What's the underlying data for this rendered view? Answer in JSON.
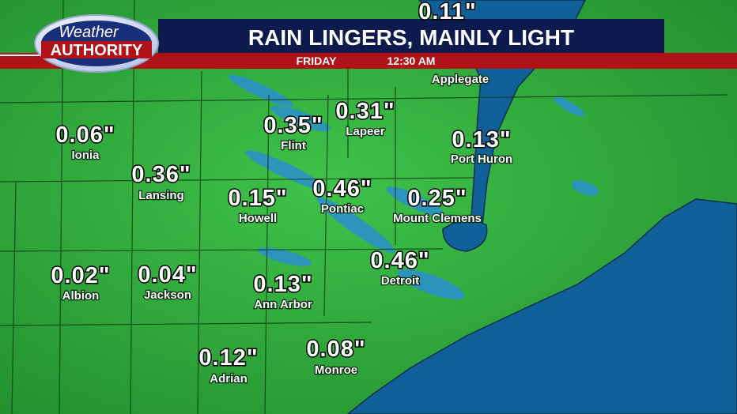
{
  "header": {
    "logo_top": "Weather",
    "logo_bottom": "AUTHORITY",
    "title": "RAIN LINGERS, MAINLY LIGHT",
    "day": "FRIDAY",
    "time": "12:30 AM"
  },
  "locations": [
    {
      "name": "Applegate",
      "amount": "0.11\""
    },
    {
      "name": "Ionia",
      "amount": "0.06\""
    },
    {
      "name": "Lansing",
      "amount": "0.36\""
    },
    {
      "name": "Flint",
      "amount": "0.35\""
    },
    {
      "name": "Lapeer",
      "amount": "0.31\""
    },
    {
      "name": "Port Huron",
      "amount": "0.13\""
    },
    {
      "name": "Howell",
      "amount": "0.15\""
    },
    {
      "name": "Pontiac",
      "amount": "0.46\""
    },
    {
      "name": "Mount Clemens",
      "amount": "0.25\""
    },
    {
      "name": "Albion",
      "amount": "0.02\""
    },
    {
      "name": "Jackson",
      "amount": "0.04\""
    },
    {
      "name": "Ann Arbor",
      "amount": "0.13\""
    },
    {
      "name": "Detroit",
      "amount": "0.46\""
    },
    {
      "name": "Adrian",
      "amount": "0.12\""
    },
    {
      "name": "Monroe",
      "amount": "0.08\""
    }
  ]
}
